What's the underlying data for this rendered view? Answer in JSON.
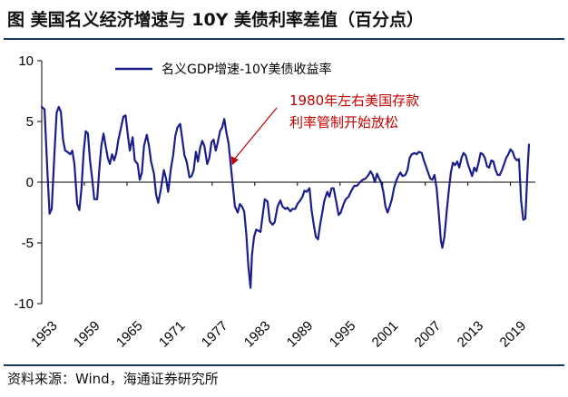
{
  "title": "图  美国名义经济增速与 10Y 美债利率差值（百分点）",
  "source": "资料来源：Wind，海通证券研究所",
  "colors": {
    "series": "#1b1f8a",
    "annotation": "#c00000",
    "rule": "#1f3864"
  },
  "chart_data": {
    "type": "line",
    "title": "美国名义经济增速与 10Y 美债利率差值（百分点）",
    "xlabel": "",
    "ylabel": "",
    "xlim": [
      1953,
      2022.5
    ],
    "ylim": [
      -10,
      10
    ],
    "yticks": [
      10,
      5,
      0,
      -5,
      -10
    ],
    "xticks": [
      "1953",
      "1959",
      "1965",
      "1971",
      "1977",
      "1983",
      "1989",
      "1995",
      "2001",
      "2007",
      "2013",
      "2019"
    ],
    "legend": {
      "label": "名义GDP增速-10Y美债收益率",
      "position": "top-left"
    },
    "annotation": {
      "lines": [
        "1980年左右美国存款",
        "利率管制开始放松"
      ],
      "target_x": 1979.8,
      "target_y": 1.4
    },
    "series": [
      {
        "name": "名义GDP增速-10Y美债收益率",
        "points": [
          [
            1953.0,
            6.2
          ],
          [
            1953.4,
            6.0
          ],
          [
            1953.8,
            0.8
          ],
          [
            1954.1,
            -2.6
          ],
          [
            1954.4,
            -2.2
          ],
          [
            1954.8,
            2.5
          ],
          [
            1955.1,
            5.7
          ],
          [
            1955.4,
            6.2
          ],
          [
            1955.7,
            5.8
          ],
          [
            1956.0,
            3.5
          ],
          [
            1956.3,
            2.6
          ],
          [
            1956.6,
            2.5
          ],
          [
            1957.0,
            2.3
          ],
          [
            1957.3,
            2.6
          ],
          [
            1957.6,
            1.5
          ],
          [
            1958.0,
            -1.8
          ],
          [
            1958.3,
            -2.3
          ],
          [
            1958.6,
            -0.5
          ],
          [
            1958.9,
            2.5
          ],
          [
            1959.2,
            4.2
          ],
          [
            1959.5,
            4.0
          ],
          [
            1959.8,
            1.8
          ],
          [
            1960.1,
            0.3
          ],
          [
            1960.4,
            -1.4
          ],
          [
            1960.8,
            -1.4
          ],
          [
            1961.1,
            1.0
          ],
          [
            1961.4,
            3.0
          ],
          [
            1961.7,
            4.0
          ],
          [
            1962.0,
            3.0
          ],
          [
            1962.3,
            2.0
          ],
          [
            1962.6,
            1.5
          ],
          [
            1962.9,
            2.3
          ],
          [
            1963.2,
            1.8
          ],
          [
            1963.5,
            2.4
          ],
          [
            1963.8,
            3.5
          ],
          [
            1964.2,
            4.6
          ],
          [
            1964.5,
            5.4
          ],
          [
            1964.8,
            5.5
          ],
          [
            1965.1,
            4.0
          ],
          [
            1965.4,
            2.6
          ],
          [
            1965.8,
            3.7
          ],
          [
            1966.1,
            1.8
          ],
          [
            1966.5,
            1.5
          ],
          [
            1966.8,
            0.2
          ],
          [
            1967.1,
            0.8
          ],
          [
            1967.4,
            3.0
          ],
          [
            1967.8,
            3.9
          ],
          [
            1968.1,
            3.0
          ],
          [
            1968.4,
            1.7
          ],
          [
            1968.8,
            0.7
          ],
          [
            1969.1,
            -1.0
          ],
          [
            1969.4,
            -1.7
          ],
          [
            1969.8,
            -0.5
          ],
          [
            1970.2,
            1.0
          ],
          [
            1970.5,
            0.3
          ],
          [
            1970.8,
            -0.8
          ],
          [
            1971.2,
            1.2
          ],
          [
            1971.5,
            2.2
          ],
          [
            1971.8,
            3.8
          ],
          [
            1972.1,
            4.5
          ],
          [
            1972.5,
            4.8
          ],
          [
            1972.8,
            3.5
          ],
          [
            1973.1,
            2.2
          ],
          [
            1973.4,
            1.7
          ],
          [
            1973.8,
            0.4
          ],
          [
            1974.1,
            0.5
          ],
          [
            1974.4,
            1.0
          ],
          [
            1974.7,
            2.5
          ],
          [
            1975.0,
            1.7
          ],
          [
            1975.3,
            2.8
          ],
          [
            1975.6,
            3.4
          ],
          [
            1975.9,
            3.0
          ],
          [
            1976.3,
            1.5
          ],
          [
            1976.6,
            2.0
          ],
          [
            1976.9,
            3.3
          ],
          [
            1977.2,
            3.5
          ],
          [
            1977.5,
            2.6
          ],
          [
            1977.8,
            3.3
          ],
          [
            1978.1,
            4.2
          ],
          [
            1978.4,
            4.5
          ],
          [
            1978.7,
            5.2
          ],
          [
            1979.0,
            4.1
          ],
          [
            1979.3,
            3.2
          ],
          [
            1979.6,
            1.5
          ],
          [
            1979.9,
            -0.3
          ],
          [
            1980.2,
            -2.0
          ],
          [
            1980.6,
            -2.5
          ],
          [
            1980.9,
            -1.8
          ],
          [
            1981.2,
            -2.0
          ],
          [
            1981.5,
            -2.4
          ],
          [
            1981.8,
            -4.2
          ],
          [
            1982.1,
            -7.0
          ],
          [
            1982.4,
            -8.7
          ],
          [
            1982.6,
            -6.0
          ],
          [
            1982.9,
            -4.5
          ],
          [
            1983.2,
            -3.9
          ],
          [
            1983.5,
            -4.0
          ],
          [
            1983.8,
            -4.1
          ],
          [
            1984.1,
            -2.8
          ],
          [
            1984.4,
            -1.4
          ],
          [
            1984.8,
            -1.6
          ],
          [
            1985.1,
            -3.2
          ],
          [
            1985.5,
            -3.5
          ],
          [
            1985.8,
            -3.3
          ],
          [
            1986.2,
            -2.0
          ],
          [
            1986.6,
            -1.5
          ],
          [
            1986.9,
            -2.0
          ],
          [
            1987.3,
            -2.2
          ],
          [
            1987.6,
            -2.1
          ],
          [
            1988.0,
            -2.4
          ],
          [
            1988.3,
            -2.2
          ],
          [
            1988.7,
            -2.2
          ],
          [
            1989.0,
            -1.8
          ],
          [
            1989.4,
            -1.5
          ],
          [
            1989.7,
            -1.2
          ],
          [
            1990.0,
            -0.7
          ],
          [
            1990.3,
            -0.8
          ],
          [
            1990.7,
            -0.5
          ],
          [
            1991.0,
            -2.3
          ],
          [
            1991.3,
            -3.5
          ],
          [
            1991.6,
            -4.5
          ],
          [
            1991.9,
            -4.7
          ],
          [
            1992.2,
            -3.5
          ],
          [
            1992.5,
            -2.5
          ],
          [
            1992.8,
            -1.5
          ],
          [
            1993.2,
            -0.8
          ],
          [
            1993.5,
            -1.2
          ],
          [
            1993.8,
            -0.5
          ],
          [
            1994.1,
            -0.5
          ],
          [
            1994.5,
            -1.7
          ],
          [
            1994.8,
            -2.7
          ],
          [
            1995.1,
            -2.5
          ],
          [
            1995.5,
            -1.8
          ],
          [
            1995.8,
            -1.4
          ],
          [
            1996.2,
            -1.2
          ],
          [
            1996.6,
            -0.7
          ],
          [
            1997.0,
            -0.3
          ],
          [
            1997.4,
            -0.3
          ],
          [
            1997.8,
            0.0
          ],
          [
            1998.2,
            0.2
          ],
          [
            1998.6,
            0.3
          ],
          [
            1999.0,
            0.6
          ],
          [
            1999.3,
            0.9
          ],
          [
            1999.6,
            0.6
          ],
          [
            1999.9,
            0.0
          ],
          [
            2000.2,
            0.7
          ],
          [
            2000.5,
            0.3
          ],
          [
            2000.8,
            0.0
          ],
          [
            2001.1,
            -0.8
          ],
          [
            2001.4,
            -2.0
          ],
          [
            2001.7,
            -2.5
          ],
          [
            2002.0,
            -2.0
          ],
          [
            2002.3,
            -1.4
          ],
          [
            2002.6,
            -0.5
          ],
          [
            2002.9,
            0.1
          ],
          [
            2003.2,
            0.5
          ],
          [
            2003.5,
            0.8
          ],
          [
            2003.8,
            0.5
          ],
          [
            2004.2,
            0.6
          ],
          [
            2004.5,
            1.0
          ],
          [
            2004.8,
            2.0
          ],
          [
            2005.1,
            2.3
          ],
          [
            2005.5,
            2.4
          ],
          [
            2005.8,
            2.3
          ],
          [
            2006.1,
            2.5
          ],
          [
            2006.5,
            2.4
          ],
          [
            2006.8,
            1.8
          ],
          [
            2007.1,
            1.3
          ],
          [
            2007.4,
            0.8
          ],
          [
            2007.7,
            0.3
          ],
          [
            2008.0,
            0.2
          ],
          [
            2008.3,
            0.6
          ],
          [
            2008.6,
            -0.5
          ],
          [
            2008.9,
            -2.5
          ],
          [
            2009.2,
            -4.8
          ],
          [
            2009.4,
            -5.4
          ],
          [
            2009.7,
            -4.5
          ],
          [
            2010.0,
            -2.5
          ],
          [
            2010.3,
            -0.8
          ],
          [
            2010.6,
            0.8
          ],
          [
            2010.9,
            1.6
          ],
          [
            2011.2,
            1.4
          ],
          [
            2011.5,
            1.7
          ],
          [
            2011.8,
            1.2
          ],
          [
            2012.1,
            2.0
          ],
          [
            2012.4,
            2.4
          ],
          [
            2012.7,
            2.2
          ],
          [
            2013.0,
            1.5
          ],
          [
            2013.3,
            1.0
          ],
          [
            2013.6,
            0.5
          ],
          [
            2013.9,
            1.2
          ],
          [
            2014.2,
            0.9
          ],
          [
            2014.5,
            1.6
          ],
          [
            2014.8,
            2.4
          ],
          [
            2015.1,
            2.3
          ],
          [
            2015.4,
            2.0
          ],
          [
            2015.7,
            1.3
          ],
          [
            2016.0,
            1.2
          ],
          [
            2016.3,
            1.8
          ],
          [
            2016.6,
            1.7
          ],
          [
            2016.9,
            1.0
          ],
          [
            2017.2,
            0.6
          ],
          [
            2017.5,
            0.6
          ],
          [
            2017.8,
            1.0
          ],
          [
            2018.1,
            1.5
          ],
          [
            2018.4,
            2.0
          ],
          [
            2018.7,
            2.3
          ],
          [
            2019.0,
            2.7
          ],
          [
            2019.3,
            2.5
          ],
          [
            2019.6,
            2.0
          ],
          [
            2019.9,
            1.8
          ],
          [
            2020.2,
            1.9
          ],
          [
            2020.5,
            -1.5
          ],
          [
            2020.8,
            -3.1
          ],
          [
            2021.1,
            -3.0
          ],
          [
            2021.4,
            1.0
          ],
          [
            2021.6,
            3.1
          ]
        ]
      }
    ]
  }
}
